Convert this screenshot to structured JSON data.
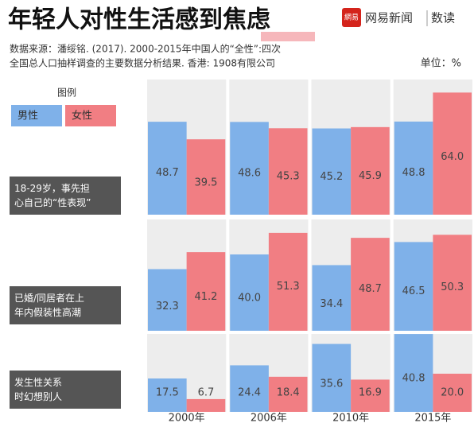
{
  "header": {
    "title": "年轻人对性生活感到焦虑",
    "logo_icon": "網易",
    "logo_name": "网易新闻",
    "logo_column": "数读",
    "source": [
      "数据来源：潘绥铭. (2017). 2000-2015年中国人的“全性”:四次",
      "全国总人口抽样调查的主要数据分析结果. 香港: 1908有限公司"
    ],
    "unit": "单位：%"
  },
  "chart_data": {
    "type": "bar",
    "legend_title": "图例",
    "categories": [
      "2000年",
      "2006年",
      "2010年",
      "2015年"
    ],
    "series": [
      {
        "name": "男性",
        "color": "#7fb1e9"
      },
      {
        "name": "女性",
        "color": "#f17e83"
      }
    ],
    "panels": [
      {
        "title": "18-29岁，事先担心自己的“性表现”",
        "values": [
          [
            48.7,
            48.6,
            45.2,
            48.8
          ],
          [
            39.5,
            45.3,
            45.9,
            64.0
          ]
        ],
        "value_labels": [
          [
            "48.7",
            "48.6",
            "45.2",
            "48.8"
          ],
          [
            "39.5",
            "45.3",
            "45.9",
            "64.0"
          ]
        ]
      },
      {
        "title": "已婚/同居者在上年内假装性高潮",
        "values": [
          [
            32.3,
            40.0,
            34.4,
            46.5
          ],
          [
            41.2,
            51.3,
            48.7,
            50.3
          ]
        ],
        "value_labels": [
          [
            "32.3",
            "40.0",
            "34.4",
            "46.5"
          ],
          [
            "41.2",
            "51.3",
            "48.7",
            "50.3"
          ]
        ]
      },
      {
        "title": "发生性关系时幻想别人",
        "values": [
          [
            17.5,
            24.4,
            35.6,
            40.8
          ],
          [
            6.7,
            18.4,
            16.9,
            20.0
          ]
        ],
        "value_labels": [
          [
            "17.5",
            "24.4",
            "35.6",
            "40.8"
          ],
          [
            "6.7",
            "18.4",
            "16.9",
            "20.0"
          ]
        ]
      }
    ]
  }
}
